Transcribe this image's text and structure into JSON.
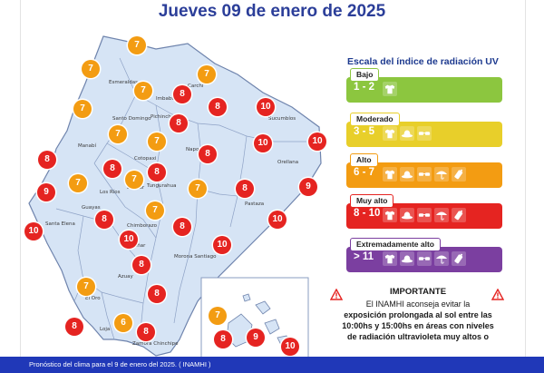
{
  "title": "Jueves 09 de enero de 2025",
  "scale_title": "Escala del índice de radiación UV",
  "levels": [
    {
      "name": "Bajo",
      "range": "1 - 2",
      "color": "#8cc63f",
      "icons": [
        "shirt-icon"
      ]
    },
    {
      "name": "Moderado",
      "range": "3 - 5",
      "color": "#e8cf2a",
      "icons": [
        "shirt-icon",
        "hat-icon",
        "sunglasses-icon"
      ]
    },
    {
      "name": "Alto",
      "range": "6 - 7",
      "color": "#f39c12",
      "icons": [
        "shirt-icon",
        "hat-icon",
        "sunglasses-icon",
        "umbrella-icon",
        "sunscreen-icon"
      ]
    },
    {
      "name": "Muy alto",
      "range": "8 - 10",
      "color": "#e52421",
      "icons": [
        "shirt-icon",
        "hat-icon",
        "sunglasses-icon",
        "umbrella-icon",
        "sunscreen-icon"
      ]
    },
    {
      "name": "Extremadamente alto",
      "range": "> 11",
      "color": "#7b3fa0",
      "icons": [
        "shirt-icon",
        "hat-icon",
        "sunglasses-icon",
        "umbrella-icon",
        "sunscreen-icon"
      ]
    }
  ],
  "important": {
    "heading": "IMPORTANTE",
    "line1": "El INAMHI aconseja evitar la",
    "line2": "exposición prolongada al sol entre las",
    "line3": "10:00hs y 15:00hs en áreas con niveles",
    "line4": "de radiación ultravioleta muy altos o"
  },
  "footer": "Pronóstico del clima para el 9 de enero del 2025. ( INAMHI )",
  "badge_colors": {
    "7": "#f39c12",
    "6": "#f39c12",
    "8": "#e52421",
    "9": "#e52421",
    "10": "#e52421"
  },
  "provinces": {
    "esmeraldas": "Esmeraldas",
    "carchi": "Carchi",
    "imbabura": "Imbabura",
    "pichincha": "Pichincha",
    "sucumbios": "Sucumbíos",
    "santo_domingo": "Santo Domingo",
    "manabi": "Manabí",
    "napo": "Napo",
    "orellana": "Orellana",
    "cotopaxi": "Cotopaxi",
    "los_rios": "Los Ríos",
    "bolivar": "Bolívar",
    "tungurahua": "Tungurahua",
    "pastaza": "Pastaza",
    "santa_elena": "Santa Elena",
    "guayas": "Guayas",
    "chimborazo": "Chimborazo",
    "canar": "Cañar",
    "morona_santiago": "Morona Santiago",
    "azuay": "Azuay",
    "el_oro": "El Oro",
    "loja": "Loja",
    "zamora": "Zamora Chinchipe"
  },
  "uv_values": {
    "carchi": "7",
    "esmeraldas": "7",
    "esmeraldas_n": "7",
    "imbabura": "7",
    "imbabura_b": "8",
    "pichincha": "8",
    "sucumbios": "10",
    "manabi_n": "7",
    "santo_domingo": "7",
    "pichincha_s": "8",
    "orellana": "10",
    "napo": "10",
    "orellana_e": "10",
    "manabi": "8",
    "cotopaxi": "7",
    "napo_s": "8",
    "cotopaxi_s": "8",
    "manabi_c": "7",
    "los_rios": "8",
    "bolivar": "7",
    "tungurahua": "8",
    "pastaza": "9",
    "pastaza_e": "8",
    "manabi_s": "9",
    "los_rios_s": "7",
    "guayas": "8",
    "chimborazo": "7",
    "morona": "8",
    "pastaza_s": "10",
    "santa_elena": "10",
    "canar": "10",
    "morona_s": "10",
    "azuay": "8",
    "el_oro": "7",
    "azuay_s": "8",
    "loja": "6",
    "loja_w": "8",
    "zamora": "8",
    "galapagos_a": "7",
    "galapagos_b": "8",
    "galapagos_c": "9",
    "galapagos_d": "10"
  }
}
